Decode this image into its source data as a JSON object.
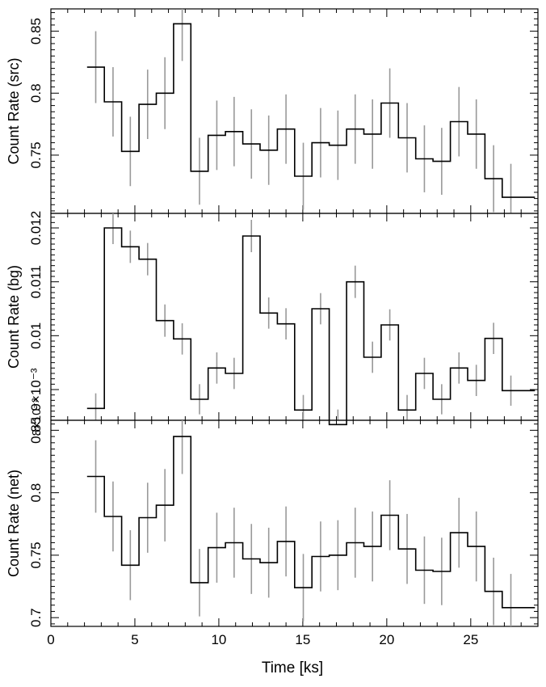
{
  "figure": {
    "xlabel": "Time [ks]",
    "xlim": [
      0,
      29
    ],
    "xticks": [
      0,
      5,
      10,
      15,
      20,
      25
    ],
    "xtick_labels": [
      "0",
      "5",
      "10",
      "15",
      "20",
      "25"
    ],
    "line_color": "#000000",
    "errorbar_color": "#999999"
  },
  "chart_data": [
    {
      "type": "line",
      "step": true,
      "panel": "src",
      "ylabel": "Count Rate (src)",
      "ylim": [
        0.703,
        0.868
      ],
      "yticks": [
        0.75,
        0.8,
        0.85
      ],
      "ytick_labels": [
        "0.75",
        "0.8",
        "0.85"
      ],
      "bin_width": 1.03,
      "x": [
        2.67,
        3.7,
        4.73,
        5.76,
        6.79,
        7.82,
        8.85,
        9.88,
        10.91,
        11.94,
        12.97,
        14.0,
        15.03,
        16.06,
        17.09,
        18.12,
        19.15,
        20.18,
        21.21,
        22.24,
        23.27,
        24.3,
        25.33,
        26.36,
        27.39,
        28.42
      ],
      "y": [
        0.821,
        0.793,
        0.753,
        0.791,
        0.8,
        0.856,
        0.737,
        0.766,
        0.769,
        0.759,
        0.754,
        0.771,
        0.733,
        0.76,
        0.758,
        0.771,
        0.767,
        0.792,
        0.764,
        0.747,
        0.745,
        0.777,
        0.767,
        0.731,
        0.716,
        0.716
      ],
      "yerr": [
        0.029,
        0.028,
        0.028,
        0.028,
        0.029,
        0.03,
        0.027,
        0.028,
        0.028,
        0.028,
        0.028,
        0.028,
        0.027,
        0.028,
        0.028,
        0.028,
        0.028,
        0.028,
        0.028,
        0.027,
        0.027,
        0.028,
        0.028,
        0.027,
        0.027,
        0.027
      ]
    },
    {
      "type": "line",
      "step": true,
      "panel": "bg",
      "ylabel": "Count Rate (bg)",
      "ylim": [
        0.00843,
        0.01227
      ],
      "yticks": [
        0.009,
        0.01,
        0.011,
        0.012
      ],
      "ytick_labels": [
        "9×10⁻³",
        "0.01",
        "0.011",
        "0.012"
      ],
      "minor_tick_labels": [
        "8×10⁻³"
      ],
      "bin_width": 1.03,
      "x": [
        2.67,
        3.7,
        4.73,
        5.76,
        6.79,
        7.82,
        8.85,
        9.88,
        10.91,
        11.94,
        12.97,
        14.0,
        15.03,
        16.06,
        17.09,
        18.12,
        19.15,
        20.18,
        21.21,
        22.24,
        23.27,
        24.3,
        25.33,
        26.36,
        27.39,
        28.42
      ],
      "y": [
        0.00865,
        0.012,
        0.01165,
        0.01142,
        0.01028,
        0.00994,
        0.00882,
        0.0094,
        0.0093,
        0.01185,
        0.01042,
        0.01022,
        0.00862,
        0.0105,
        0.00835,
        0.011,
        0.0096,
        0.0102,
        0.00862,
        0.0093,
        0.00882,
        0.0094,
        0.00917,
        0.00995,
        0.00898,
        0.00898
      ],
      "yerr": [
        0.00028,
        0.0003,
        0.0003,
        0.0003,
        0.0003,
        0.00029,
        0.00028,
        0.00029,
        0.00029,
        0.0003,
        0.00029,
        0.00029,
        0.00028,
        0.00029,
        0.00028,
        0.0003,
        0.00029,
        0.00029,
        0.00028,
        0.00029,
        0.00028,
        0.00029,
        0.00029,
        0.00029,
        0.00028,
        0.00028
      ]
    },
    {
      "type": "line",
      "step": true,
      "panel": "net",
      "ylabel": "Count Rate (net)",
      "ylim": [
        0.693,
        0.858
      ],
      "yticks": [
        0.7,
        0.75,
        0.8,
        0.85
      ],
      "ytick_labels": [
        "0.7",
        "0.75",
        "0.8",
        "0.85"
      ],
      "bin_width": 1.03,
      "x": [
        2.67,
        3.7,
        4.73,
        5.76,
        6.79,
        7.82,
        8.85,
        9.88,
        10.91,
        11.94,
        12.97,
        14.0,
        15.03,
        16.06,
        17.09,
        18.12,
        19.15,
        20.18,
        21.21,
        22.24,
        23.27,
        24.3,
        25.33,
        26.36,
        27.39,
        28.42
      ],
      "y": [
        0.813,
        0.781,
        0.742,
        0.78,
        0.79,
        0.845,
        0.728,
        0.756,
        0.76,
        0.747,
        0.744,
        0.761,
        0.724,
        0.749,
        0.75,
        0.76,
        0.757,
        0.782,
        0.755,
        0.738,
        0.737,
        0.768,
        0.757,
        0.721,
        0.708,
        0.708
      ],
      "yerr": [
        0.029,
        0.028,
        0.028,
        0.028,
        0.029,
        0.03,
        0.027,
        0.028,
        0.028,
        0.028,
        0.028,
        0.028,
        0.027,
        0.028,
        0.028,
        0.028,
        0.028,
        0.028,
        0.028,
        0.027,
        0.027,
        0.028,
        0.028,
        0.027,
        0.027,
        0.027
      ]
    }
  ]
}
